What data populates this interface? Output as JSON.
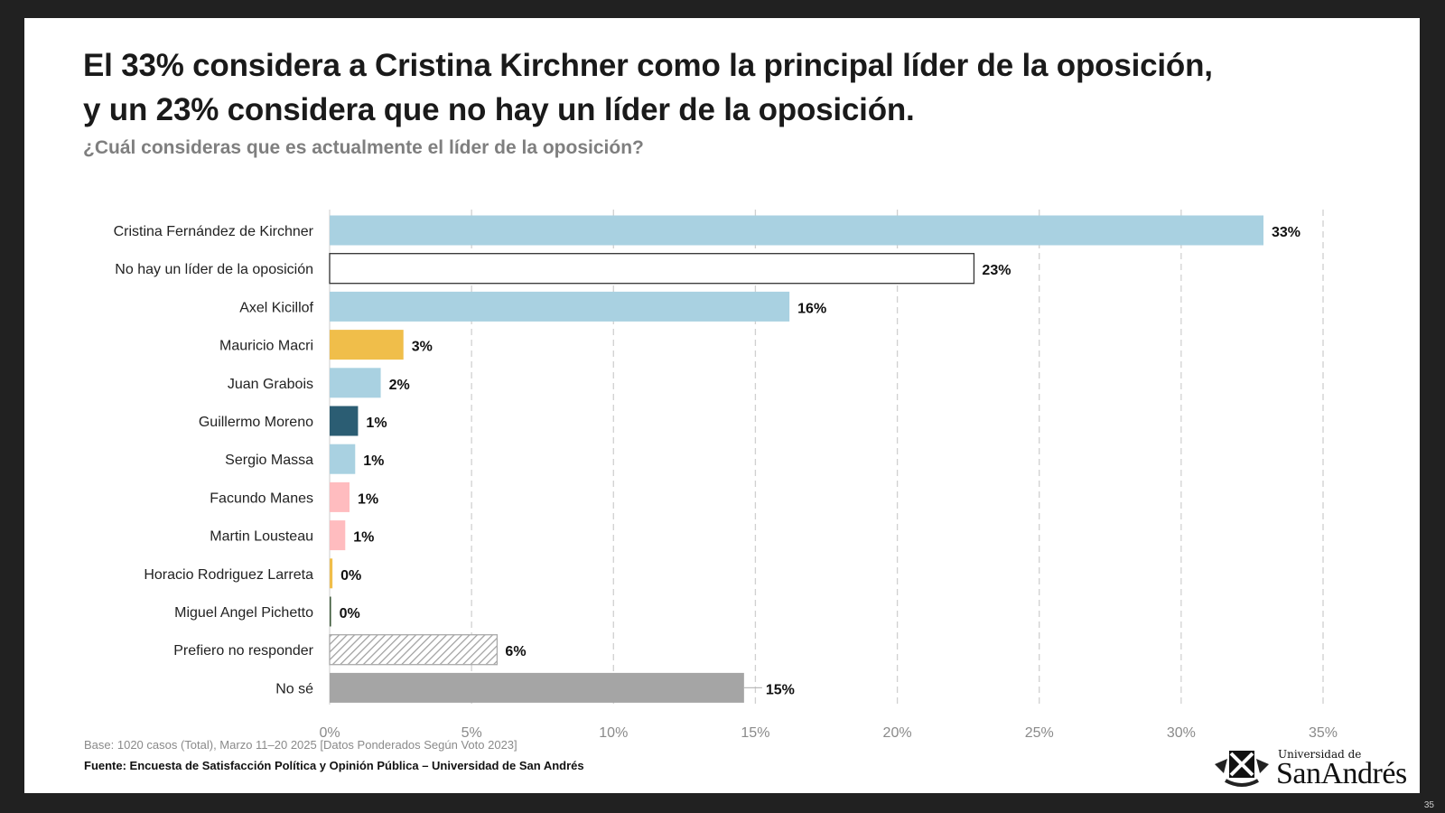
{
  "title_line1": "El 33% considera a Cristina Kirchner como la principal líder de la oposición,",
  "title_line2": "y un 23% considera que no hay un líder de la oposición.",
  "subtitle": "¿Cuál consideras que es actualmente el líder de la oposición?",
  "base_note": "Base: 1020 casos (Total), Marzo 11–20 2025 [Datos Ponderados Según Voto 2023]",
  "source": "Fuente: Encuesta de Satisfacción Política y Opinión Pública – Universidad de San Andrés",
  "logo": {
    "top": "Universidad de",
    "main": "SanAndrés"
  },
  "page_number": "35",
  "chart_data": {
    "type": "bar",
    "orientation": "horizontal",
    "title": "¿Cuál consideras que es actualmente el líder de la oposición?",
    "xlabel": "",
    "ylabel": "",
    "xlim": [
      0,
      35
    ],
    "xticks": [
      "0%",
      "5%",
      "10%",
      "15%",
      "20%",
      "25%",
      "30%",
      "35%"
    ],
    "grid": "vertical dashed",
    "categories": [
      "Cristina Fernández de Kirchner",
      "No hay un líder de la oposición",
      "Axel Kicillof",
      "Mauricio Macri",
      "Juan Grabois",
      "Guillermo Moreno",
      "Sergio Massa",
      "Facundo Manes",
      "Martin Lousteau",
      "Horacio Rodriguez Larreta",
      "Miguel Angel Pichetto",
      "Prefiero no responder",
      "No sé"
    ],
    "values": [
      32.9,
      22.7,
      16.2,
      2.6,
      1.8,
      1.0,
      0.9,
      0.7,
      0.55,
      0.1,
      0.05,
      5.9,
      14.6
    ],
    "labels": [
      "33%",
      "23%",
      "16%",
      "3%",
      "2%",
      "1%",
      "1%",
      "1%",
      "1%",
      "0%",
      "0%",
      "6%",
      "15%"
    ],
    "colors": [
      "#a9d1e1",
      "#ffffff",
      "#a9d1e1",
      "#f0be4a",
      "#a9d1e1",
      "#2b5d73",
      "#a9d1e1",
      "#ffbcbf",
      "#ffbcbf",
      "#f0be4a",
      "#3d5a3a",
      "hatch",
      "#a5a5a5"
    ]
  }
}
